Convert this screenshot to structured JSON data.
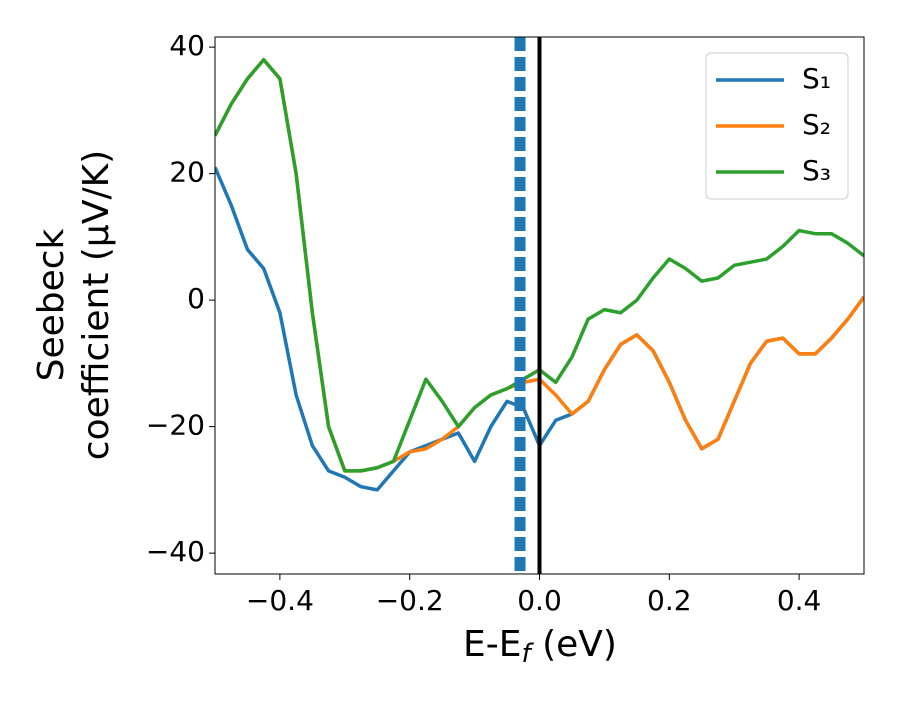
{
  "chart_data": {
    "type": "line",
    "xlabel": [
      "E-E",
      "f",
      " (eV)"
    ],
    "ylabel": [
      "Seebeck",
      "coefficient  (μV/K)"
    ],
    "x": [
      -0.5,
      -0.475,
      -0.45,
      -0.425,
      -0.4,
      -0.375,
      -0.35,
      -0.325,
      -0.3,
      -0.275,
      -0.25,
      -0.225,
      -0.2,
      -0.175,
      -0.15,
      -0.125,
      -0.1,
      -0.075,
      -0.05,
      -0.025,
      0,
      0.025,
      0.05,
      0.075,
      0.1,
      0.125,
      0.15,
      0.175,
      0.2,
      0.225,
      0.25,
      0.275,
      0.3,
      0.325,
      0.35,
      0.375,
      0.4,
      0.425,
      0.45,
      0.475,
      0.5
    ],
    "series": [
      {
        "name": "S₁",
        "color": "#1f77b4",
        "values": [
          21,
          15,
          8,
          5,
          -2,
          -15,
          -23,
          -27,
          -28,
          -29.5,
          -30,
          -27,
          -24,
          -23,
          -22,
          -21,
          -25.5,
          -20,
          -16,
          -17,
          -23,
          -19,
          -18,
          -16,
          -11,
          -7,
          -5.5,
          -8,
          -13,
          -19,
          -23.5,
          -22,
          -16,
          -10,
          -6.5,
          -6,
          -8.5,
          -8.5,
          -6,
          -3,
          0.5
        ]
      },
      {
        "name": "S₂",
        "color": "#ff7f0e",
        "values": [
          26,
          31,
          35,
          38,
          35,
          20,
          -2,
          -20,
          -27,
          -27,
          -26.5,
          -25.5,
          -24,
          -23.5,
          -22,
          -20,
          -17,
          -15,
          -14,
          -13,
          -12.5,
          -15,
          -18,
          -16,
          -11,
          -7,
          -5.5,
          -8,
          -13,
          -19,
          -23.5,
          -22,
          -16,
          -10,
          -6.5,
          -6,
          -8.5,
          -8.5,
          -6,
          -3,
          0.5
        ]
      },
      {
        "name": "S₃",
        "color": "#2ca02c",
        "values": [
          26,
          31,
          35,
          38,
          35,
          20,
          -2,
          -20,
          -27,
          -27,
          -26.5,
          -25.5,
          -19,
          -12.5,
          -16,
          -20,
          -17,
          -15,
          -14,
          -12.5,
          -11,
          -13,
          -9,
          -3,
          -1.5,
          -2,
          0,
          3.5,
          6.5,
          5,
          3,
          3.5,
          5.5,
          6,
          6.5,
          8.5,
          11,
          10.5,
          10.5,
          9,
          7
        ]
      }
    ],
    "vlines": [
      {
        "x": -0.03,
        "color": "#1f77b4",
        "style": "dashed"
      },
      {
        "x": 0,
        "color": "#000000",
        "style": "solid"
      }
    ],
    "xlim": [
      -0.5,
      0.5
    ],
    "ylim": [
      -43.3,
      41.6
    ],
    "xticks": [
      {
        "value": -0.4,
        "label": "−0.4"
      },
      {
        "value": -0.2,
        "label": "−0.2"
      },
      {
        "value": 0,
        "label": "0.0"
      },
      {
        "value": 0.2,
        "label": "0.2"
      },
      {
        "value": 0.4,
        "label": "0.4"
      }
    ],
    "yticks": [
      {
        "value": -40,
        "label": "−40"
      },
      {
        "value": -20,
        "label": "−20"
      },
      0,
      20,
      40
    ],
    "legend": "upper right"
  }
}
